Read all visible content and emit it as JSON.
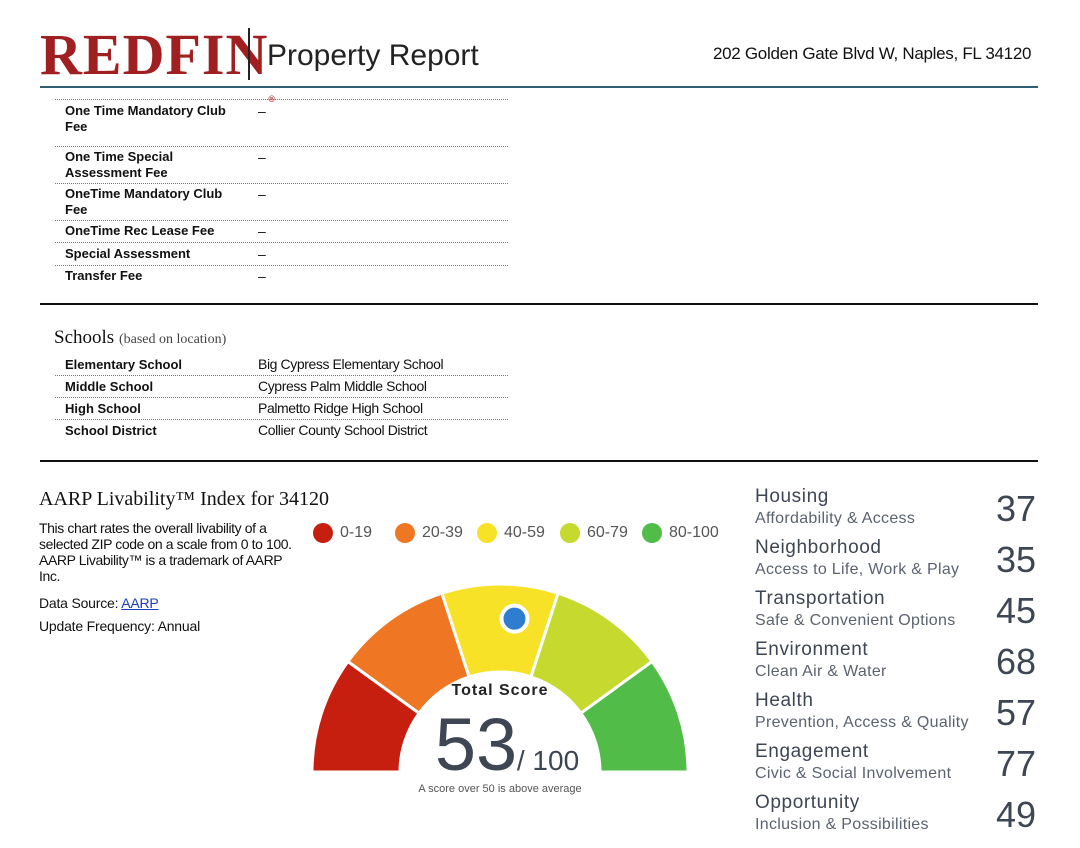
{
  "header": {
    "logo": "REDFIN",
    "logo_mark": "®",
    "title": "Property Report",
    "address": "202 Golden Gate Blvd W, Naples, FL 34120"
  },
  "fees": [
    {
      "label": "One Time Mandatory Club Fee",
      "value": "–"
    },
    {
      "label": "One Time Special Assessment Fee",
      "value": "–"
    },
    {
      "label": "OneTime Mandatory Club Fee",
      "value": "–"
    },
    {
      "label": "OneTime Rec Lease Fee",
      "value": "–"
    },
    {
      "label": "Special Assessment",
      "value": "–"
    },
    {
      "label": "Transfer Fee",
      "value": "–"
    }
  ],
  "schools": {
    "title": "Schools",
    "subtitle": "(based on location)",
    "rows": [
      {
        "label": "Elementary School",
        "value": "Big Cypress Elementary School"
      },
      {
        "label": "Middle School",
        "value": "Cypress Palm Middle School"
      },
      {
        "label": "High School",
        "value": "Palmetto Ridge High School"
      },
      {
        "label": "School District",
        "value": "Collier County School District"
      }
    ]
  },
  "aarp": {
    "title": "AARP Livability™ Index for 34120",
    "description": "This chart rates the overall livability of a selected ZIP code on a scale from 0 to 100. AARP Livability™ is a trademark of AARP Inc.",
    "source_label": "Data Source: ",
    "source_link": "AARP",
    "update_frequency": "Update Frequency: Annual",
    "legend": [
      {
        "label": "0-19",
        "color": "#c61f10"
      },
      {
        "label": "20-39",
        "color": "#ef7622"
      },
      {
        "label": "40-59",
        "color": "#f7e227"
      },
      {
        "label": "60-79",
        "color": "#c5d92f"
      },
      {
        "label": "80-100",
        "color": "#52bc48"
      }
    ],
    "gauge": {
      "total_label": "Total Score",
      "score": 53,
      "max": 100,
      "max_label": "/ 100",
      "note": "A score over 50 is above average",
      "marker_color": "#2f7dd1"
    },
    "categories": [
      {
        "name": "Housing",
        "sub": "Affordability & Access",
        "score": "37"
      },
      {
        "name": "Neighborhood",
        "sub": "Access to Life, Work & Play",
        "score": "35"
      },
      {
        "name": "Transportation",
        "sub": "Safe & Convenient Options",
        "score": "45"
      },
      {
        "name": "Environment",
        "sub": "Clean Air & Water",
        "score": "68"
      },
      {
        "name": "Health",
        "sub": "Prevention, Access & Quality",
        "score": "57"
      },
      {
        "name": "Engagement",
        "sub": "Civic & Social Involvement",
        "score": "77"
      },
      {
        "name": "Opportunity",
        "sub": "Inclusion & Possibilities",
        "score": "49"
      }
    ]
  }
}
